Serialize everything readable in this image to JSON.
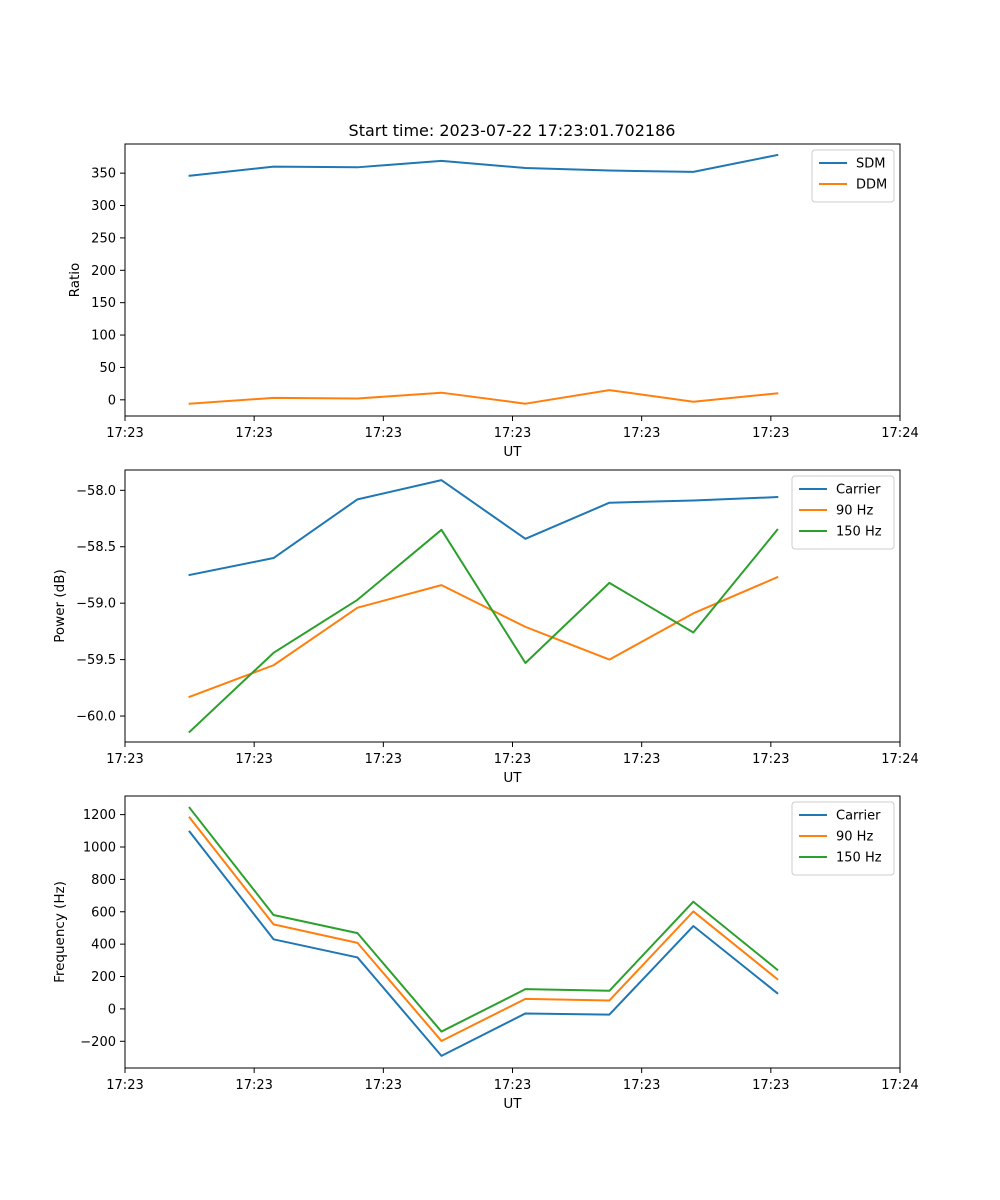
{
  "figure_title": "Start time: 2023-07-22 17:23:01.702186",
  "colors": {
    "blue": "#1f77b4",
    "orange": "#ff7f0e",
    "green": "#2ca02c"
  },
  "chart_data": [
    {
      "type": "line",
      "title": "Start time: 2023-07-22 17:23:01.702186",
      "xlabel": "UT",
      "ylabel": "Ratio",
      "x_tick_labels": [
        "17:23",
        "17:23",
        "17:23",
        "17:23",
        "17:23",
        "17:23",
        "17:24"
      ],
      "xlim": [
        0,
        6
      ],
      "x": [
        0.5,
        1.15,
        1.8,
        2.45,
        3.1,
        3.75,
        4.4,
        5.05
      ],
      "ylim": [
        -25,
        395
      ],
      "y_ticks": [
        0,
        50,
        100,
        150,
        200,
        250,
        300,
        350
      ],
      "legend_position": "top-right",
      "series": [
        {
          "name": "SDM",
          "color": "#1f77b4",
          "values": [
            346,
            360,
            359,
            369,
            358,
            354,
            352,
            378
          ]
        },
        {
          "name": "DDM",
          "color": "#ff7f0e",
          "values": [
            -6,
            3,
            2,
            11,
            -6,
            15,
            -3,
            10
          ]
        }
      ]
    },
    {
      "type": "line",
      "xlabel": "UT",
      "ylabel": "Power (dB)",
      "x_tick_labels": [
        "17:23",
        "17:23",
        "17:23",
        "17:23",
        "17:23",
        "17:23",
        "17:24"
      ],
      "xlim": [
        0,
        6
      ],
      "x": [
        0.5,
        1.15,
        1.8,
        2.45,
        3.1,
        3.75,
        4.4,
        5.05
      ],
      "ylim": [
        -60.23,
        -57.82
      ],
      "y_ticks": [
        -60.0,
        -59.5,
        -59.0,
        -58.5,
        -58.0
      ],
      "y_tick_labels": [
        "−60.0",
        "−59.5",
        "−59.0",
        "−58.5",
        "−58.0"
      ],
      "legend_position": "top-right",
      "series": [
        {
          "name": "Carrier",
          "color": "#1f77b4",
          "values": [
            -58.75,
            -58.6,
            -58.08,
            -57.91,
            -58.43,
            -58.11,
            -58.09,
            -58.06
          ]
        },
        {
          "name": "90 Hz",
          "color": "#ff7f0e",
          "values": [
            -59.83,
            -59.55,
            -59.04,
            -58.84,
            -59.21,
            -59.5,
            -59.09,
            -58.77
          ]
        },
        {
          "name": "150 Hz",
          "color": "#2ca02c",
          "values": [
            -60.14,
            -59.44,
            -58.97,
            -58.35,
            -59.53,
            -58.82,
            -59.26,
            -58.35
          ]
        }
      ]
    },
    {
      "type": "line",
      "xlabel": "UT",
      "ylabel": "Frequency (Hz)",
      "x_tick_labels": [
        "17:23",
        "17:23",
        "17:23",
        "17:23",
        "17:23",
        "17:23",
        "17:24"
      ],
      "xlim": [
        0,
        6
      ],
      "x": [
        0.5,
        1.15,
        1.8,
        2.45,
        3.1,
        3.75,
        4.4,
        5.05
      ],
      "ylim": [
        -365,
        1315
      ],
      "y_ticks": [
        -200,
        0,
        200,
        400,
        600,
        800,
        1000,
        1200
      ],
      "y_tick_labels": [
        "−200",
        "0",
        "200",
        "400",
        "600",
        "800",
        "1000",
        "1200"
      ],
      "legend_position": "top-right",
      "series": [
        {
          "name": "Carrier",
          "color": "#1f77b4",
          "values": [
            1095,
            430,
            318,
            -290,
            -28,
            -35,
            512,
            97
          ]
        },
        {
          "name": "90 Hz",
          "color": "#ff7f0e",
          "values": [
            1182,
            522,
            408,
            -198,
            62,
            52,
            602,
            184
          ]
        },
        {
          "name": "150 Hz",
          "color": "#2ca02c",
          "values": [
            1242,
            580,
            468,
            -140,
            122,
            112,
            662,
            242
          ]
        }
      ]
    }
  ]
}
